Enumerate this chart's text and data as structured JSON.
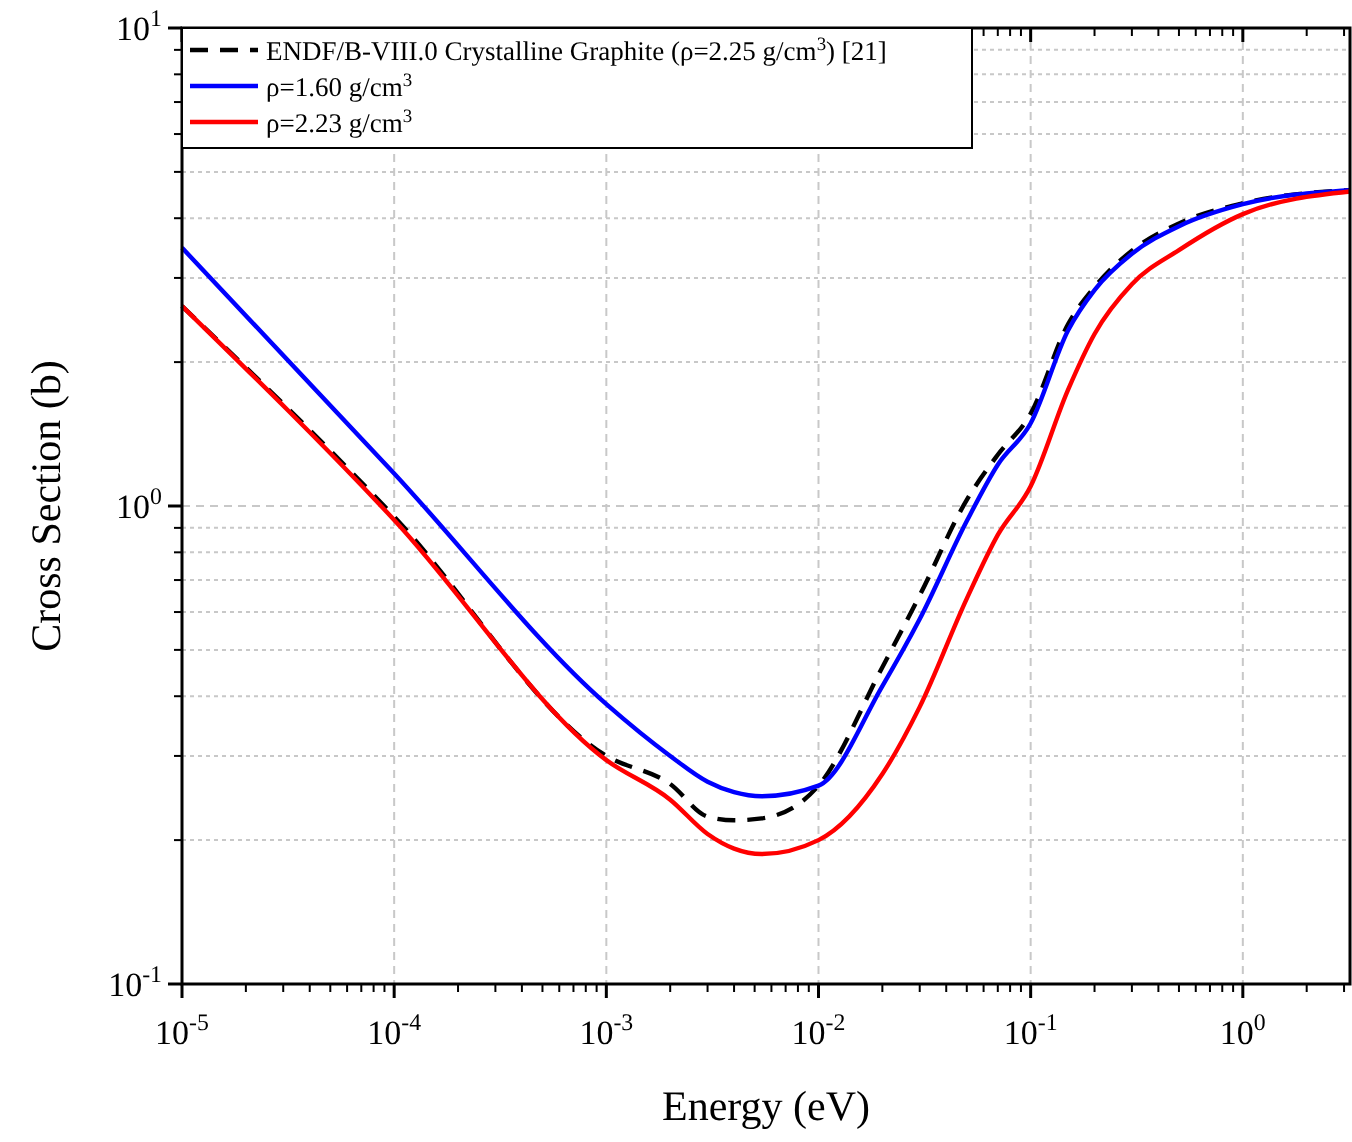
{
  "chart_data": {
    "type": "line",
    "xlabel": "Energy (eV)",
    "ylabel": "Cross Section (b)",
    "log": "xy",
    "grid": true,
    "legend": "top left",
    "xlim": [
      1e-05,
      3.2
    ],
    "ylim": [
      0.1,
      10
    ],
    "xticks": [
      {
        "value": 1e-05,
        "label": "10$^{-5}$"
      },
      {
        "value": 0.0001,
        "label": "10$^{-4}$"
      },
      {
        "value": 0.001,
        "label": "10$^{-3}$"
      },
      {
        "value": 0.01,
        "label": "10$^{-2}$"
      },
      {
        "value": 0.1,
        "label": "10$^{-1}$"
      },
      {
        "value": 1,
        "label": "10$^{0}$"
      }
    ],
    "yticks": [
      {
        "value": 0.1,
        "label": "10$^{-1}$"
      },
      {
        "value": 0.2,
        "label": null
      },
      {
        "value": 0.3,
        "label": null
      },
      {
        "value": 0.4,
        "label": null
      },
      {
        "value": 0.5,
        "label": null
      },
      {
        "value": 0.6,
        "label": null
      },
      {
        "value": 0.7,
        "label": null
      },
      {
        "value": 0.8,
        "label": null
      },
      {
        "value": 0.9,
        "label": null
      },
      {
        "value": 1,
        "label": "10$^{0}$"
      },
      {
        "value": 2,
        "label": null
      },
      {
        "value": 3,
        "label": null
      },
      {
        "value": 4,
        "label": null
      },
      {
        "value": 5,
        "label": null
      },
      {
        "value": 6,
        "label": null
      },
      {
        "value": 7,
        "label": null
      },
      {
        "value": 8,
        "label": null
      },
      {
        "value": 9,
        "label": null
      },
      {
        "value": 10,
        "label": "10$^{1}$"
      }
    ],
    "x": [
      1e-05,
      0.0001,
      0.001,
      0.002,
      0.003,
      0.004,
      0.0054,
      0.01,
      0.02,
      0.03,
      0.05,
      0.07,
      0.1,
      0.15,
      0.2,
      0.3,
      0.5,
      1,
      3.2
    ],
    "series": [
      {
        "name": "ENDF/B-VIII.0 Crystalline Graphite (ρ=2.25 g/cm$^{3}$) [21]",
        "color": "#000000",
        "line_style": "dashed",
        "values": [
          2.62,
          0.95,
          0.3,
          0.262,
          0.224,
          0.22,
          0.222,
          0.26,
          0.46,
          0.65,
          1.03,
          1.28,
          1.56,
          2.4,
          2.87,
          3.42,
          3.9,
          4.3,
          4.58
        ]
      },
      {
        "name": "ρ=1.60 g/cm$^{3}$",
        "color": "#0000ff",
        "line_style": "solid",
        "values": [
          3.47,
          1.17,
          0.385,
          0.3,
          0.265,
          0.252,
          0.247,
          0.26,
          0.42,
          0.58,
          0.93,
          1.22,
          1.49,
          2.33,
          2.83,
          3.37,
          3.85,
          4.28,
          4.58
        ]
      },
      {
        "name": "ρ=2.23 g/cm$^{3}$",
        "color": "#ff0000",
        "line_style": "solid",
        "values": [
          2.62,
          0.935,
          0.294,
          0.243,
          0.206,
          0.192,
          0.187,
          0.2,
          0.275,
          0.38,
          0.64,
          0.87,
          1.1,
          1.75,
          2.29,
          2.91,
          3.43,
          4.08,
          4.55
        ]
      }
    ]
  }
}
